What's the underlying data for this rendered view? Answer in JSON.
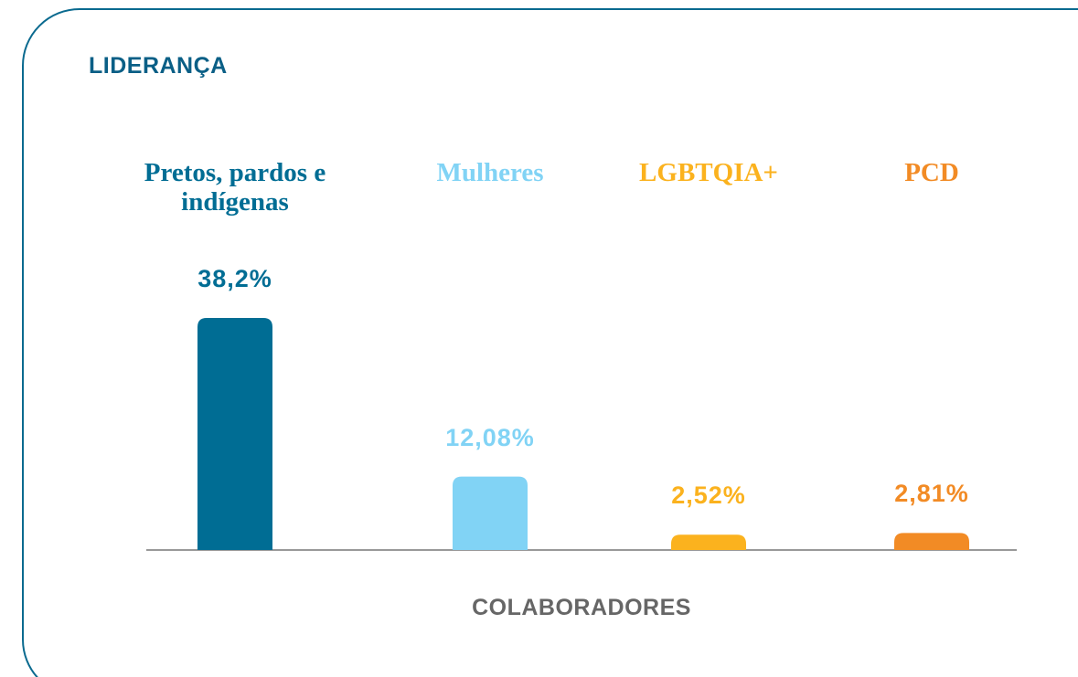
{
  "chart_data": {
    "type": "bar",
    "title": "LIDERANÇA",
    "categories": [
      "Pretos, pardos e indígenas",
      "Mulheres",
      "LGBTQIA+",
      "PCD"
    ],
    "values": [
      38.2,
      12.08,
      2.52,
      2.81
    ],
    "value_labels": [
      "38,2%",
      "12,08%",
      "2,52%",
      "2,81%"
    ],
    "colors": [
      "#006d94",
      "#81d3f5",
      "#fbb21e",
      "#f28b25"
    ],
    "xlabel": "COLABORADORES"
  }
}
